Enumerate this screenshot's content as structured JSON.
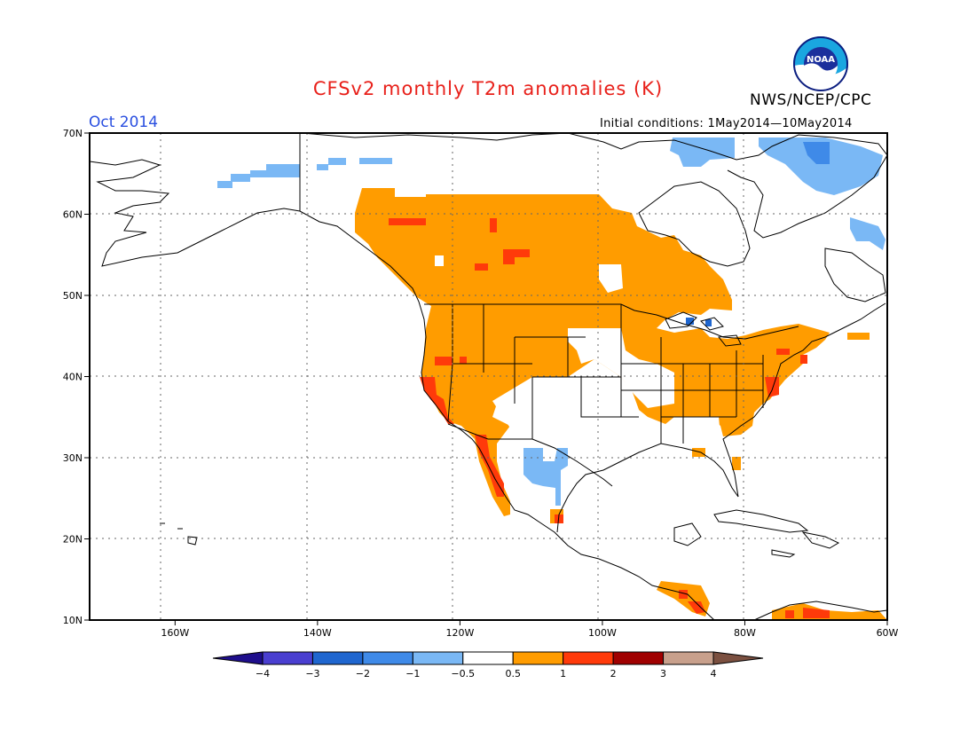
{
  "title": "CFSv2 monthly T2m anomalies (K)",
  "month_label": "Oct 2014",
  "agency": "NWS/NCEP/CPC",
  "logo_text": "NOAA",
  "initial_conditions": "Initial conditions: 1May2014—10May2014",
  "map": {
    "lon_range": [
      -172,
      -60
    ],
    "lat_range": [
      10,
      70
    ],
    "lat_ticks": [
      {
        "value": 70,
        "label": "70N"
      },
      {
        "value": 60,
        "label": "60N"
      },
      {
        "value": 50,
        "label": "50N"
      },
      {
        "value": 40,
        "label": "40N"
      },
      {
        "value": 30,
        "label": "30N"
      },
      {
        "value": 20,
        "label": "20N"
      },
      {
        "value": 10,
        "label": "10N"
      }
    ],
    "lon_ticks": [
      {
        "value": -160,
        "label": "160W"
      },
      {
        "value": -140,
        "label": "140W"
      },
      {
        "value": -120,
        "label": "120W"
      },
      {
        "value": -100,
        "label": "100W"
      },
      {
        "value": -80,
        "label": "80W"
      },
      {
        "value": -60,
        "label": "60W"
      }
    ]
  },
  "colorbar": {
    "labels": [
      "−4",
      "−3",
      "−2",
      "−1",
      "−0.5",
      "0.5",
      "1",
      "2",
      "3",
      "4"
    ],
    "colors": [
      "#1e0e8c",
      "#4a3fd0",
      "#1f66cf",
      "#3f8ae8",
      "#7ab8f5",
      "#ffffff",
      "#ff9c00",
      "#ff3a0a",
      "#a00000",
      "#c8a08c",
      "#7b5040"
    ]
  }
}
